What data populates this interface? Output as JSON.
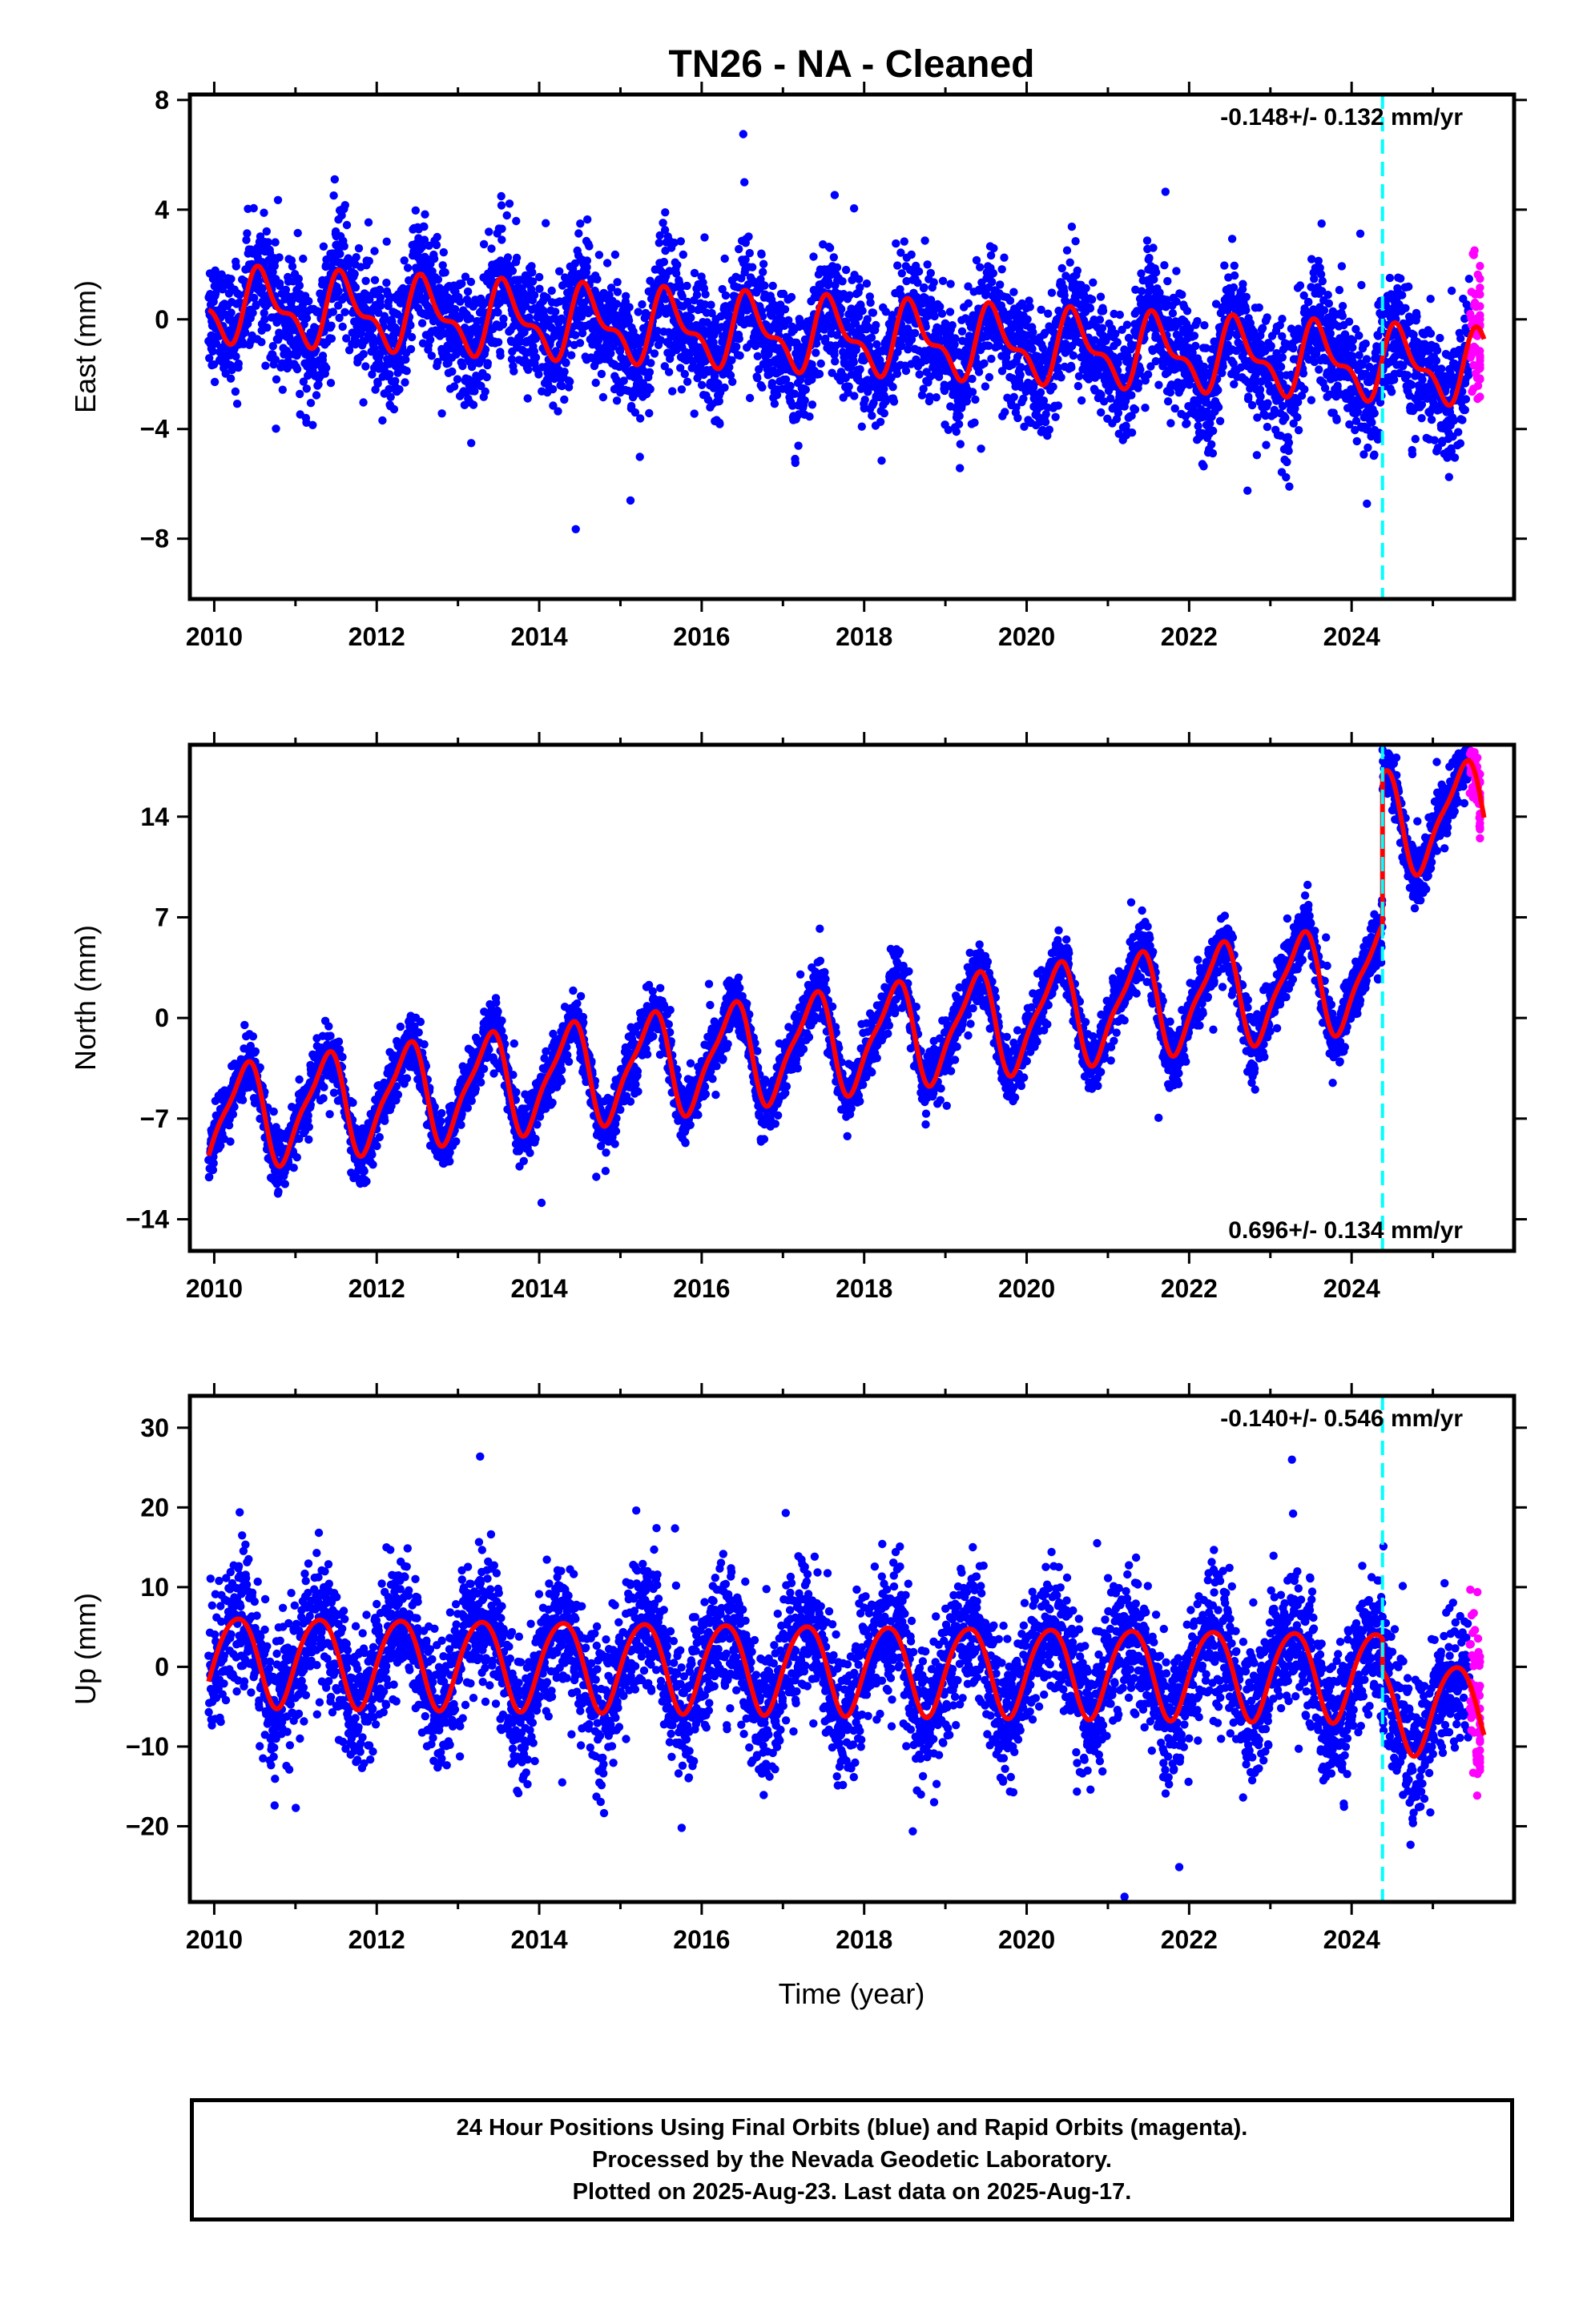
{
  "chart_data": {
    "title": "TN26  - NA - Cleaned",
    "xlabel": "Time (year)",
    "x_ticks": [
      "2010",
      "2012",
      "2014",
      "2016",
      "2018",
      "2020",
      "2022",
      "2024"
    ],
    "xlim": [
      2009.7,
      2026.0
    ],
    "event_line_x": 2024.38,
    "last_final_x": 2025.45,
    "last_x": 2025.63,
    "colors": {
      "final": "#0000ff",
      "rapid": "#ff00ff",
      "model": "#ff0000",
      "event": "#00ffff"
    },
    "panels": [
      {
        "type": "scatter",
        "ylabel": "East (mm)",
        "ylim": [
          -10.2,
          8.2
        ],
        "y_ticks": [
          "8",
          "4",
          "0",
          "−4",
          "−8"
        ],
        "y_tick_values": [
          8,
          4,
          0,
          -4,
          -8
        ],
        "rate_label": "-0.148+/- 0.132 mm/yr",
        "rate_position": "top-right",
        "model": {
          "offset": 0.5,
          "trend": -0.148,
          "amp_cos": -0.9,
          "amp_sin": -0.7,
          "amp_semi": 0.55,
          "step": 0.0,
          "noise": 1.1
        }
      },
      {
        "type": "scatter",
        "ylabel": "North (mm)",
        "ylim": [
          -16.2,
          19.0
        ],
        "y_ticks": [
          "14",
          "7",
          "0",
          "−7",
          "−14"
        ],
        "y_tick_values": [
          14,
          7,
          0,
          -7,
          -14
        ],
        "rate_label": "0.696+/- 0.134 mm/yr",
        "rate_position": "bottom-right",
        "model": {
          "offset": -7.0,
          "trend": 0.696,
          "amp_cos": -2.2,
          "amp_sin": 2.6,
          "amp_semi": 0.9,
          "step": 10.5,
          "noise": 1.0
        }
      },
      {
        "type": "scatter",
        "ylabel": "Up (mm)",
        "ylim": [
          -29.5,
          34.0
        ],
        "y_ticks": [
          "30",
          "20",
          "10",
          "0",
          "−10",
          "−20"
        ],
        "y_tick_values": [
          30,
          20,
          10,
          0,
          -10,
          -20
        ],
        "rate_label": "-0.140+/- 0.546 mm/yr",
        "rate_position": "top-right",
        "model": {
          "offset": 1.0,
          "trend": -0.14,
          "amp_cos": -1.0,
          "amp_sin": 5.5,
          "amp_semi": 0.6,
          "step": -4.0,
          "noise": 4.2
        }
      }
    ]
  },
  "footer": {
    "line1": "24 Hour Positions Using Final Orbits (blue) and Rapid Orbits (magenta).",
    "line2": "Processed by the Nevada Geodetic Laboratory.",
    "line3": "Plotted on 2025-Aug-23. Last data on 2025-Aug-17."
  }
}
